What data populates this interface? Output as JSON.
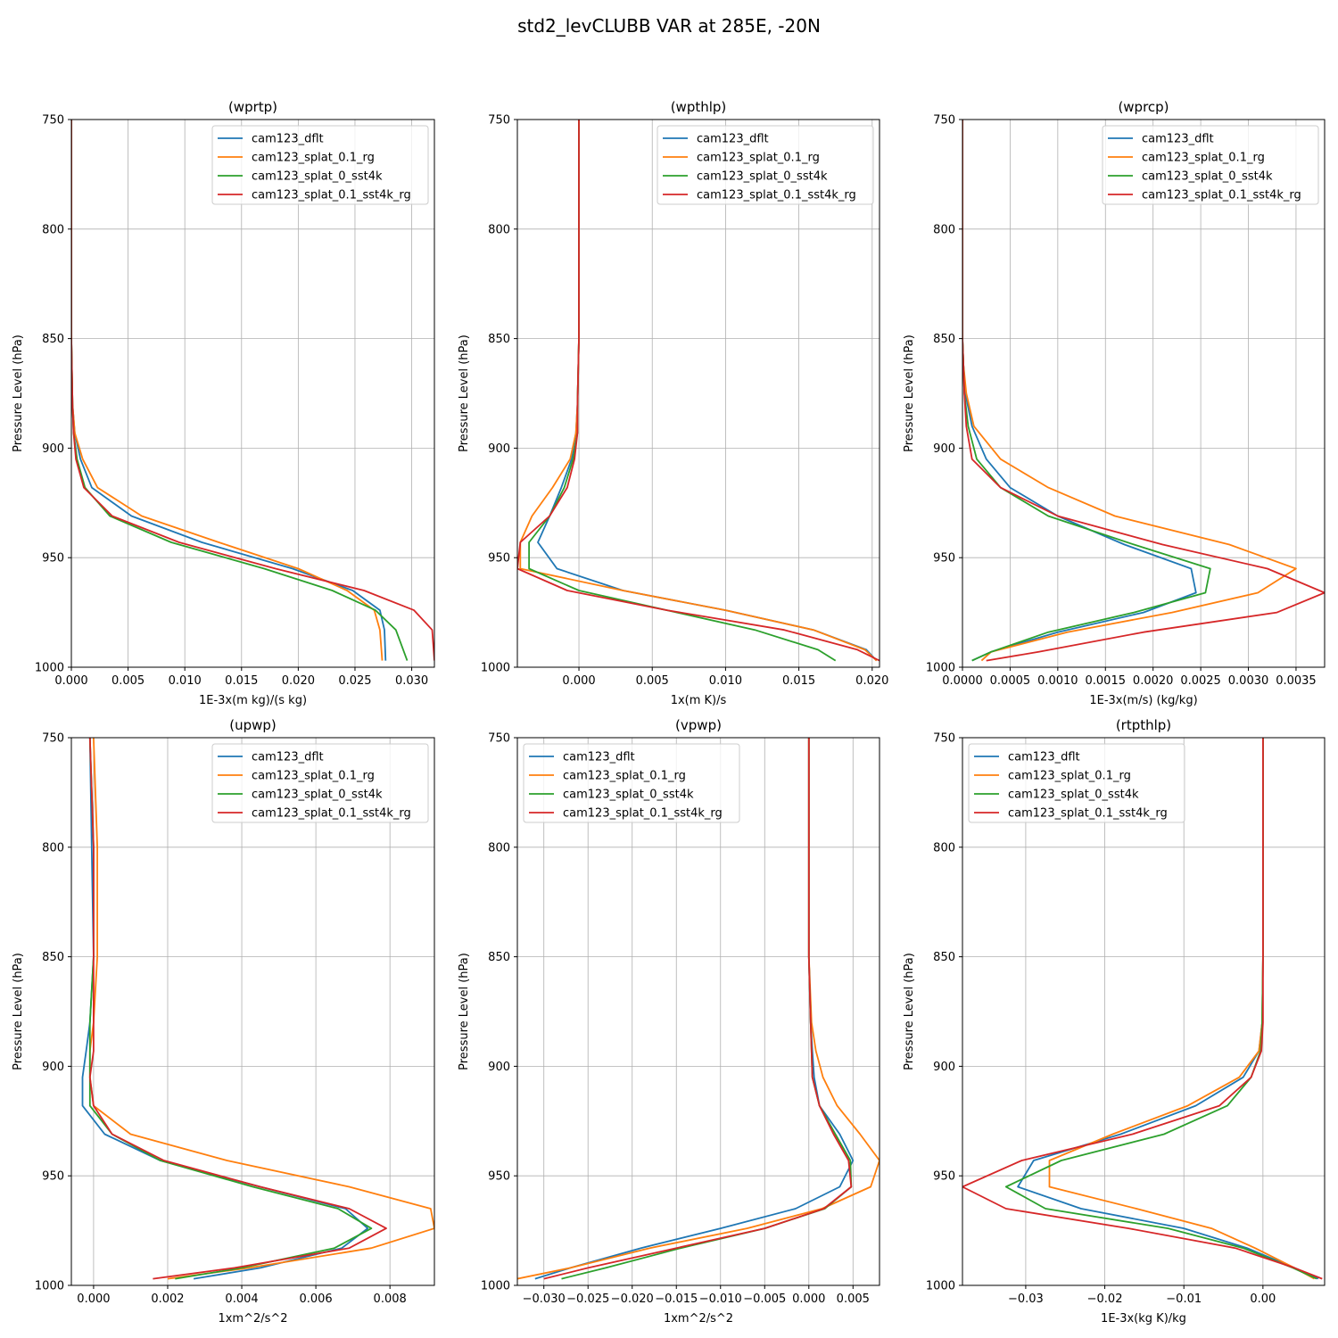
{
  "figure": {
    "title": "std2_levCLUBB VAR at 285E, -20N"
  },
  "colors": {
    "cam123_dflt": "#1f77b4",
    "cam123_splat_0.1_rg": "#ff7f0e",
    "cam123_splat_0_sst4k": "#2ca02c",
    "cam123_splat_0.1_sst4k_rg": "#d62728"
  },
  "chart_data": [
    {
      "type": "line",
      "title": "(wprtp)",
      "xlabel": "1E-3x(m kg)/(s kg)",
      "ylabel": "Pressure Level (hPa)",
      "xlim": [
        0,
        0.032
      ],
      "ylim": [
        1000,
        750
      ],
      "xticks": [
        0,
        0.005,
        0.01,
        0.015,
        0.02,
        0.025,
        0.03
      ],
      "xticklabels": [
        "0.000",
        "0.005",
        "0.010",
        "0.015",
        "0.020",
        "0.025",
        "0.030"
      ],
      "yticks": [
        750,
        800,
        850,
        900,
        950,
        1000
      ],
      "yticklabels": [
        "750",
        "800",
        "850",
        "900",
        "950",
        "1000"
      ],
      "legend": "upper right",
      "grid": true,
      "y": [
        750,
        800,
        850,
        880,
        893,
        905,
        918,
        931,
        943,
        955,
        965,
        974,
        983,
        997
      ],
      "series": [
        {
          "name": "cam123_dflt",
          "values": [
            0,
            0,
            0,
            0.0001,
            0.0003,
            0.0008,
            0.0018,
            0.0053,
            0.0115,
            0.0195,
            0.0248,
            0.0272,
            0.0276,
            0.0277
          ]
        },
        {
          "name": "cam123_splat_0.1_rg",
          "values": [
            0,
            0,
            0,
            0.0001,
            0.0003,
            0.001,
            0.0023,
            0.0062,
            0.013,
            0.02,
            0.0243,
            0.0267,
            0.0272,
            0.0274
          ]
        },
        {
          "name": "cam123_splat_0_sst4k",
          "values": [
            0,
            0,
            0,
            0.0001,
            0.0002,
            0.0005,
            0.0012,
            0.0034,
            0.0088,
            0.017,
            0.023,
            0.0268,
            0.0286,
            0.0296
          ]
        },
        {
          "name": "cam123_splat_0.1_sst4k_rg",
          "values": [
            0,
            0,
            0,
            0.0001,
            0.0002,
            0.0004,
            0.0011,
            0.0036,
            0.0095,
            0.018,
            0.0258,
            0.0302,
            0.0318,
            0.032
          ]
        }
      ]
    },
    {
      "type": "line",
      "title": "(wpthlp)",
      "xlabel": "1x(m K)/s",
      "ylabel": "Pressure Level (hPa)",
      "xlim": [
        -0.0042,
        0.0205
      ],
      "ylim": [
        1000,
        750
      ],
      "xticks": [
        0,
        0.005,
        0.01,
        0.015,
        0.02
      ],
      "xticklabels": [
        "0.000",
        "0.005",
        "0.010",
        "0.015",
        "0.020"
      ],
      "yticks": [
        750,
        800,
        850,
        900,
        950,
        1000
      ],
      "yticklabels": [
        "750",
        "800",
        "850",
        "900",
        "950",
        "1000"
      ],
      "legend": "upper right",
      "grid": true,
      "y": [
        750,
        800,
        850,
        880,
        893,
        905,
        918,
        931,
        943,
        955,
        965,
        974,
        983,
        992,
        997
      ],
      "series": [
        {
          "name": "cam123_dflt",
          "values": [
            0,
            0,
            0,
            -0.0001,
            -0.0002,
            -0.0005,
            -0.0012,
            -0.002,
            -0.0028,
            -0.0015,
            0.003,
            0.01,
            0.016,
            0.0196,
            0.0203
          ]
        },
        {
          "name": "cam123_splat_0.1_rg",
          "values": [
            0,
            0,
            0,
            -0.0001,
            -0.0002,
            -0.0006,
            -0.0018,
            -0.0032,
            -0.004,
            -0.004,
            0.003,
            0.01,
            0.016,
            0.0195,
            0.0203
          ]
        },
        {
          "name": "cam123_splat_0_sst4k",
          "values": [
            0,
            0,
            0,
            -0.0001,
            -0.0001,
            -0.0004,
            -0.001,
            -0.002,
            -0.0034,
            -0.0034,
            0.0,
            0.006,
            0.012,
            0.0163,
            0.0175
          ]
        },
        {
          "name": "cam123_splat_0.1_sst4k_rg",
          "values": [
            0,
            0,
            0,
            -0.0001,
            -0.0001,
            -0.0003,
            -0.0008,
            -0.002,
            -0.004,
            -0.0042,
            -0.0008,
            0.006,
            0.014,
            0.019,
            0.0205
          ]
        }
      ]
    },
    {
      "type": "line",
      "title": "(wprcp)",
      "xlabel": "1E-3x(m/s) (kg/kg)",
      "ylabel": "Pressure Level (hPa)",
      "xlim": [
        0,
        0.0038
      ],
      "ylim": [
        1000,
        750
      ],
      "xticks": [
        0,
        0.0005,
        0.001,
        0.0015,
        0.002,
        0.0025,
        0.003,
        0.0035
      ],
      "xticklabels": [
        "0.0000",
        "0.0005",
        "0.0010",
        "0.0015",
        "0.0020",
        "0.0025",
        "0.0030",
        "0.0035"
      ],
      "yticks": [
        750,
        800,
        850,
        900,
        950,
        1000
      ],
      "yticklabels": [
        "750",
        "800",
        "850",
        "900",
        "950",
        "1000"
      ],
      "legend": "upper right",
      "grid": true,
      "y": [
        750,
        800,
        850,
        862,
        875,
        890,
        905,
        918,
        931,
        944,
        955,
        966,
        975,
        984,
        993,
        997
      ],
      "series": [
        {
          "name": "cam123_dflt",
          "values": [
            0,
            0,
            0,
            1e-05,
            3e-05,
            0.0001,
            0.00025,
            0.0005,
            0.001,
            0.0017,
            0.0024,
            0.00245,
            0.0019,
            0.001,
            0.0003,
            0.0001
          ]
        },
        {
          "name": "cam123_splat_0.1_rg",
          "values": [
            0,
            0,
            0,
            1e-05,
            4e-05,
            0.00012,
            0.0004,
            0.0009,
            0.0016,
            0.0028,
            0.0035,
            0.0031,
            0.0022,
            0.0011,
            0.0003,
            0.0002
          ]
        },
        {
          "name": "cam123_splat_0_sst4k",
          "values": [
            0,
            0,
            0,
            1e-05,
            2e-05,
            6e-05,
            0.00015,
            0.0004,
            0.0009,
            0.0018,
            0.0026,
            0.00255,
            0.0018,
            0.0009,
            0.0003,
            0.0001
          ]
        },
        {
          "name": "cam123_splat_0.1_sst4k_rg",
          "values": [
            0,
            0,
            0,
            1e-05,
            2e-05,
            4e-05,
            0.0001,
            0.0004,
            0.001,
            0.0021,
            0.0032,
            0.0038,
            0.0033,
            0.0019,
            0.0008,
            0.00025
          ]
        }
      ]
    },
    {
      "type": "line",
      "title": "(upwp)",
      "xlabel": "1xm^2/s^2",
      "ylabel": "Pressure Level (hPa)",
      "xlim": [
        -0.0006,
        0.0092
      ],
      "ylim": [
        1000,
        750
      ],
      "xticks": [
        0,
        0.002,
        0.004,
        0.006,
        0.008
      ],
      "xticklabels": [
        "0.000",
        "0.002",
        "0.004",
        "0.006",
        "0.008"
      ],
      "yticks": [
        750,
        800,
        850,
        900,
        950,
        1000
      ],
      "yticklabels": [
        "750",
        "800",
        "850",
        "900",
        "950",
        "1000"
      ],
      "legend": "upper right",
      "grid": true,
      "y": [
        750,
        800,
        850,
        880,
        893,
        905,
        918,
        931,
        943,
        955,
        965,
        974,
        983,
        992,
        997
      ],
      "series": [
        {
          "name": "cam123_dflt",
          "values": [
            -0.0001,
            -5e-05,
            0,
            -0.0001,
            -0.0002,
            -0.0003,
            -0.0003,
            0.0003,
            0.0018,
            0.0045,
            0.0068,
            0.0074,
            0.0067,
            0.0045,
            0.0027
          ]
        },
        {
          "name": "cam123_splat_0.1_rg",
          "values": [
            0,
            0.0001,
            0.0001,
            0,
            -0.0001,
            -0.0001,
            0,
            0.001,
            0.0036,
            0.0069,
            0.0091,
            0.0092,
            0.0075,
            0.0042,
            0.002
          ]
        },
        {
          "name": "cam123_splat_0_sst4k",
          "values": [
            -0.0001,
            0,
            0,
            -0.0001,
            -0.0001,
            -0.0001,
            -0.0001,
            0.0005,
            0.0018,
            0.0043,
            0.0066,
            0.0075,
            0.0065,
            0.004,
            0.0022
          ]
        },
        {
          "name": "cam123_splat_0.1_sst4k_rg",
          "values": [
            -0.0001,
            0,
            0,
            0,
            0,
            -0.0001,
            0,
            0.0005,
            0.0019,
            0.0045,
            0.0069,
            0.0079,
            0.0069,
            0.0038,
            0.0016
          ]
        }
      ]
    },
    {
      "type": "line",
      "title": "(vpwp)",
      "xlabel": "1xm^2/s^2",
      "ylabel": "Pressure Level (hPa)",
      "xlim": [
        -0.033,
        0.008
      ],
      "ylim": [
        1000,
        750
      ],
      "xticks": [
        -0.03,
        -0.025,
        -0.02,
        -0.015,
        -0.01,
        -0.005,
        0,
        0.005
      ],
      "xticklabels": [
        "−0.030",
        "−0.025",
        "−0.020",
        "−0.015",
        "−0.010",
        "−0.005",
        "0.000",
        "0.005"
      ],
      "yticks": [
        750,
        800,
        850,
        900,
        950,
        1000
      ],
      "yticklabels": [
        "750",
        "800",
        "850",
        "900",
        "950",
        "1000"
      ],
      "legend": "upper left",
      "grid": true,
      "y": [
        750,
        800,
        850,
        880,
        893,
        905,
        918,
        931,
        943,
        955,
        965,
        974,
        983,
        992,
        997
      ],
      "series": [
        {
          "name": "cam123_dflt",
          "values": [
            0,
            0,
            0,
            0.0002,
            0.0004,
            0.0006,
            0.0012,
            0.0035,
            0.005,
            0.0035,
            -0.0015,
            -0.01,
            -0.019,
            -0.027,
            -0.031
          ]
        },
        {
          "name": "cam123_splat_0.1_rg",
          "values": [
            0,
            0,
            0,
            0.0003,
            0.0008,
            0.0016,
            0.0032,
            0.0058,
            0.008,
            0.007,
            0.0015,
            -0.007,
            -0.018,
            -0.027,
            -0.033
          ]
        },
        {
          "name": "cam123_splat_0_sst4k",
          "values": [
            0,
            0,
            0,
            0.0002,
            0.0003,
            0.0004,
            0.0012,
            0.003,
            0.0047,
            0.0048,
            0.0018,
            -0.005,
            -0.0145,
            -0.023,
            -0.028
          ]
        },
        {
          "name": "cam123_splat_0.1_sst4k_rg",
          "values": [
            0,
            0,
            0,
            0.0002,
            0.0003,
            0.0004,
            0.0012,
            0.0028,
            0.0045,
            0.0048,
            0.0017,
            -0.005,
            -0.015,
            -0.025,
            -0.03
          ]
        }
      ]
    },
    {
      "type": "line",
      "title": "(rtpthlp)",
      "xlabel": "1E-3x(kg K)/kg",
      "ylabel": "Pressure Level (hPa)",
      "xlim": [
        -0.038,
        0.0078
      ],
      "ylim": [
        1000,
        750
      ],
      "xticks": [
        -0.03,
        -0.02,
        -0.01,
        0
      ],
      "xticklabels": [
        "−0.03",
        "−0.02",
        "−0.01",
        "0.00"
      ],
      "yticks": [
        750,
        800,
        850,
        900,
        950,
        1000
      ],
      "yticklabels": [
        "750",
        "800",
        "850",
        "900",
        "950",
        "1000"
      ],
      "legend": "upper left",
      "grid": true,
      "y": [
        750,
        800,
        850,
        880,
        893,
        905,
        918,
        931,
        943,
        955,
        965,
        974,
        983,
        992,
        997
      ],
      "series": [
        {
          "name": "cam123_dflt",
          "values": [
            0,
            0,
            0,
            -0.0001,
            -0.0005,
            -0.0025,
            -0.0085,
            -0.018,
            -0.029,
            -0.031,
            -0.023,
            -0.01,
            -0.002,
            0.004,
            0.007
          ]
        },
        {
          "name": "cam123_splat_0.1_rg",
          "values": [
            0,
            0,
            0,
            -0.0001,
            -0.0005,
            -0.003,
            -0.0095,
            -0.019,
            -0.027,
            -0.027,
            -0.016,
            -0.0065,
            -0.001,
            0.004,
            0.0065
          ]
        },
        {
          "name": "cam123_splat_0_sst4k",
          "values": [
            0,
            0,
            0,
            -0.0001,
            -0.0003,
            -0.0015,
            -0.0045,
            -0.0125,
            -0.0255,
            -0.0325,
            -0.0275,
            -0.012,
            -0.0025,
            0.0038,
            0.0068
          ]
        },
        {
          "name": "cam123_splat_0.1_sst4k_rg",
          "values": [
            0,
            0,
            0,
            0,
            -0.0002,
            -0.0015,
            -0.0055,
            -0.0165,
            -0.0305,
            -0.038,
            -0.0325,
            -0.017,
            -0.0035,
            0.004,
            0.0075
          ]
        }
      ]
    }
  ]
}
